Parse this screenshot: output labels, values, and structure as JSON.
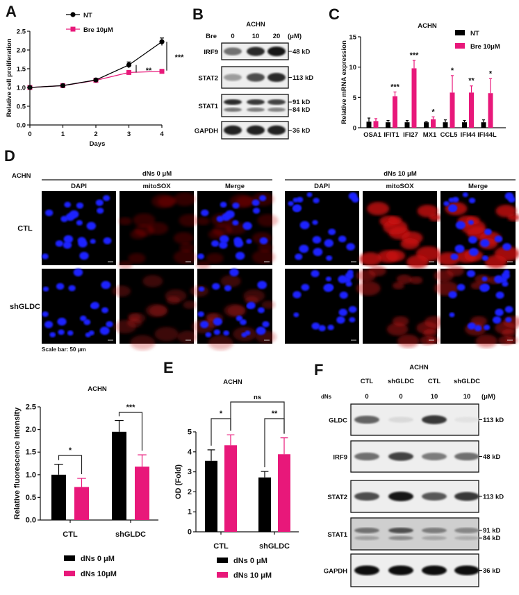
{
  "panel_letters": {
    "A": "A",
    "B": "B",
    "C": "C",
    "D": "D",
    "E": "E",
    "F": "F"
  },
  "colors": {
    "nt": "#000000",
    "treated": "#e8187a"
  },
  "chart_data": [
    {
      "id": "A",
      "type": "line",
      "xlabel": "Days",
      "ylabel": "Relative cell proliferation",
      "x": [
        0,
        1,
        2,
        3,
        4
      ],
      "xticks": [
        "0",
        "1",
        "2",
        "3",
        "4"
      ],
      "ylim": [
        0,
        2.5
      ],
      "yticks": [
        "0.0",
        "0.5",
        "1.0",
        "1.5",
        "2.0",
        "2.5"
      ],
      "legend": "top-left",
      "series": [
        {
          "name": "NT",
          "color": "#000000",
          "marker": "circle",
          "values": [
            1.0,
            1.05,
            1.2,
            1.6,
            2.22
          ],
          "errors": [
            0.02,
            0.02,
            0.03,
            0.08,
            0.1
          ]
        },
        {
          "name": "Bre 10μM",
          "color": "#e8187a",
          "marker": "square",
          "values": [
            1.0,
            1.05,
            1.19,
            1.4,
            1.43
          ],
          "errors": [
            0.02,
            0.02,
            0.03,
            0.03,
            0.05
          ]
        }
      ],
      "annotations": [
        {
          "text": "**",
          "x": 3
        },
        {
          "text": "***",
          "x": 4
        }
      ]
    },
    {
      "id": "C",
      "type": "bar",
      "title": "ACHN",
      "ylabel": "Relative mRNA expression",
      "categories": [
        "OSA1",
        "IFIT1",
        "IFI27",
        "MX1",
        "CCL5",
        "IFI44",
        "IFI44L"
      ],
      "ylim": [
        0,
        15
      ],
      "yticks": [
        "0",
        "5",
        "10",
        "15"
      ],
      "legend": "top-right",
      "series": [
        {
          "name": "NT",
          "color": "#000000",
          "values": [
            1.0,
            0.9,
            0.9,
            0.9,
            0.9,
            0.9,
            0.9
          ],
          "errors": [
            0.6,
            0.3,
            0.3,
            0.1,
            0.4,
            0.3,
            0.4
          ]
        },
        {
          "name": "Bre 10μM",
          "color": "#e8187a",
          "values": [
            1.1,
            5.2,
            9.8,
            1.4,
            5.8,
            5.8,
            5.7
          ],
          "errors": [
            0.4,
            0.7,
            1.3,
            0.4,
            2.8,
            1.1,
            2.4
          ]
        }
      ],
      "significance": [
        "",
        "***",
        "***",
        "*",
        "*",
        "**",
        "*"
      ]
    },
    {
      "id": "fluorescence",
      "type": "bar",
      "title": "ACHN",
      "ylabel": "Relative fluorescence intensity",
      "categories": [
        "CTL",
        "shGLDC"
      ],
      "ylim": [
        0,
        2.5
      ],
      "yticks": [
        "0.0",
        "0.5",
        "1.0",
        "1.5",
        "2.0",
        "2.5"
      ],
      "legend": "bottom",
      "series": [
        {
          "name": "dNs 0 μM",
          "color": "#000000",
          "values": [
            1.0,
            1.95
          ],
          "errors": [
            0.23,
            0.25
          ]
        },
        {
          "name": "dNs 10μM",
          "color": "#e8187a",
          "values": [
            0.73,
            1.18
          ],
          "errors": [
            0.19,
            0.26
          ]
        }
      ],
      "comparisons": [
        {
          "text": "*",
          "from": [
            0,
            0
          ],
          "to": [
            0,
            1
          ]
        },
        {
          "text": "***",
          "from": [
            1,
            0
          ],
          "to": [
            1,
            1
          ]
        }
      ]
    },
    {
      "id": "E",
      "type": "bar",
      "title": "ACHN",
      "ylabel": "OD (Fold)",
      "categories": [
        "CTL",
        "shGLDC"
      ],
      "ylim": [
        0,
        5
      ],
      "yticks": [
        "0",
        "1",
        "2",
        "3",
        "4",
        "5"
      ],
      "legend": "bottom",
      "series": [
        {
          "name": "dNs 0 μM",
          "color": "#000000",
          "values": [
            3.55,
            2.72
          ],
          "errors": [
            0.55,
            0.3
          ]
        },
        {
          "name": "dNs 10 μM",
          "color": "#e8187a",
          "values": [
            4.33,
            3.88
          ],
          "errors": [
            0.52,
            0.82
          ]
        }
      ],
      "comparisons": [
        {
          "text": "*",
          "from": [
            0,
            0
          ],
          "to": [
            0,
            1
          ]
        },
        {
          "text": "**",
          "from": [
            1,
            0
          ],
          "to": [
            1,
            1
          ]
        },
        {
          "text": "ns",
          "from": [
            0,
            1
          ],
          "to": [
            1,
            1
          ]
        }
      ]
    }
  ],
  "blot_b": {
    "title": "ACHN",
    "treatment_label": "Bre",
    "lanes": [
      "0",
      "10",
      "20"
    ],
    "unit": "(μM)",
    "rows": [
      {
        "protein": "IRF9",
        "markers": [
          "48 kD"
        ],
        "band_intensity": [
          0.55,
          0.85,
          0.95
        ]
      },
      {
        "protein": "STAT2",
        "markers": [
          "113 kD"
        ],
        "band_intensity": [
          0.35,
          0.7,
          0.85
        ]
      },
      {
        "protein": "STAT1",
        "markers": [
          "91 kD",
          "84 kD"
        ],
        "band_intensity": [
          0.85,
          0.8,
          0.75
        ]
      },
      {
        "protein": "GAPDH",
        "markers": [
          "36 kD"
        ],
        "band_intensity": [
          0.9,
          0.9,
          0.9
        ]
      }
    ]
  },
  "microscopy": {
    "cell_line": "ACHN",
    "groups": [
      "dNs 0 μM",
      "dNs 10 μM"
    ],
    "channels": [
      "DAPI",
      "mitoSOX",
      "Merge"
    ],
    "rows": [
      "CTL",
      "shGLDC"
    ],
    "scale_bar": "Scale bar: 50 μm"
  },
  "blot_f": {
    "title": "ACHN",
    "groups": [
      "CTL",
      "shGLDC",
      "CTL",
      "shGLDC"
    ],
    "treatment_label": "dNs",
    "lanes": [
      "0",
      "0",
      "10",
      "10"
    ],
    "unit": "(μM)",
    "rows": [
      {
        "protein": "GLDC",
        "markers": [
          "113 kD"
        ],
        "band_intensity": [
          0.6,
          0.08,
          0.8,
          0.04
        ]
      },
      {
        "protein": "IRF9",
        "markers": [
          "48 kD"
        ],
        "band_intensity": [
          0.55,
          0.75,
          0.5,
          0.55
        ]
      },
      {
        "protein": "STAT2",
        "markers": [
          "113 kD"
        ],
        "band_intensity": [
          0.7,
          0.95,
          0.65,
          0.8
        ]
      },
      {
        "protein": "STAT1",
        "markers": [
          "91 kD",
          "84 kD"
        ],
        "band_intensity": [
          0.55,
          0.7,
          0.5,
          0.45
        ]
      },
      {
        "protein": "GAPDH",
        "markers": [
          "36 kD"
        ],
        "band_intensity": [
          1.0,
          1.0,
          1.0,
          1.0
        ]
      }
    ]
  }
}
